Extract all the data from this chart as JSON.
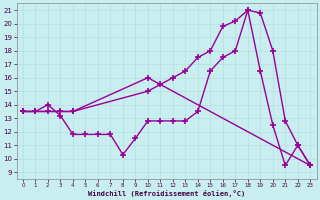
{
  "background_color": "#c8eef0",
  "line_color": "#990099",
  "grid_color": "#b8dfe0",
  "xlabel": "Windchill (Refroidissement éolien,°C)",
  "ylabel_ticks": [
    9,
    10,
    11,
    12,
    13,
    14,
    15,
    16,
    17,
    18,
    19,
    20,
    21
  ],
  "xlabel_ticks": [
    0,
    1,
    2,
    3,
    4,
    5,
    6,
    7,
    8,
    9,
    10,
    11,
    12,
    13,
    14,
    15,
    16,
    17,
    18,
    19,
    20,
    21,
    22,
    23
  ],
  "xlim": [
    -0.5,
    23.5
  ],
  "ylim": [
    8.5,
    21.5
  ],
  "line1_x": [
    0,
    1,
    2,
    3,
    4,
    5,
    6,
    7,
    8,
    9,
    10,
    11,
    12,
    13,
    14,
    15,
    16,
    17,
    18,
    19,
    20,
    21,
    22,
    23
  ],
  "line1_y": [
    13.5,
    13.5,
    14.0,
    13.2,
    11.8,
    11.8,
    11.8,
    11.8,
    10.3,
    11.5,
    12.8,
    12.8,
    12.8,
    12.8,
    13.5,
    16.5,
    17.5,
    18.0,
    21.0,
    16.5,
    12.5,
    9.5,
    11.0,
    9.5
  ],
  "line2_x": [
    0,
    1,
    2,
    3,
    4,
    10,
    11,
    12,
    13,
    14,
    15,
    16,
    17,
    18,
    19,
    20,
    21,
    22,
    23
  ],
  "line2_y": [
    13.5,
    13.5,
    13.5,
    13.5,
    13.5,
    15.0,
    15.5,
    16.0,
    16.5,
    17.5,
    18.0,
    19.8,
    20.2,
    21.0,
    20.8,
    18.0,
    12.8,
    11.0,
    9.5
  ],
  "line3_x": [
    0,
    4,
    10,
    23
  ],
  "line3_y": [
    13.5,
    13.5,
    16.0,
    9.5
  ]
}
